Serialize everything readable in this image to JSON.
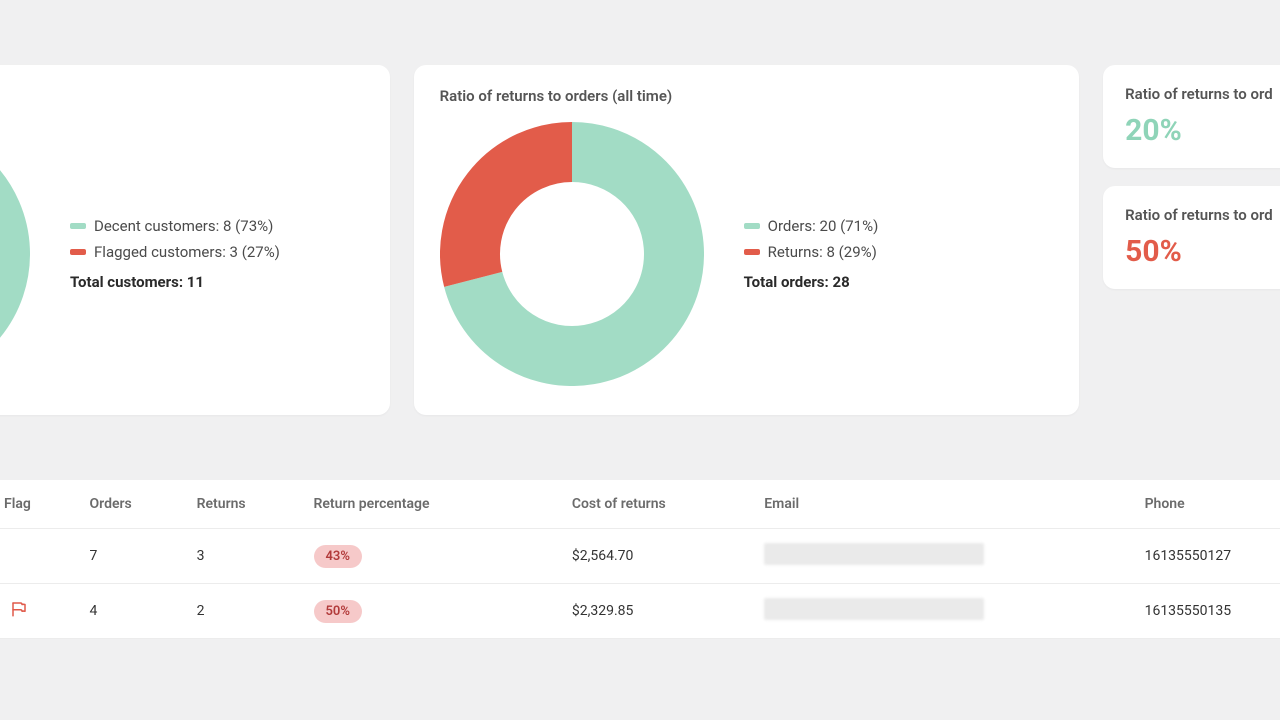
{
  "colors": {
    "green": "#a2dcc5",
    "red": "#e25c4a",
    "pill_bg": "#f6c9c9",
    "pill_text": "#b23a3a",
    "stat_green": "#8fd4b8",
    "stat_red": "#e25c4a"
  },
  "card_left": {
    "donut": {
      "type": "donut",
      "outer_radius": 132,
      "inner_radius": 72,
      "stroke_width": 60,
      "start_angle_deg": -90,
      "segments": [
        {
          "label": "Decent customers",
          "value": 8,
          "pct": 73,
          "color": "#a2dcc5"
        },
        {
          "label": "Flagged customers",
          "value": 3,
          "pct": 27,
          "color": "#e25c4a"
        }
      ]
    },
    "legend": [
      {
        "label": "Decent customers: 8 (73%)",
        "color": "#a2dcc5"
      },
      {
        "label": "Flagged customers: 3 (27%)",
        "color": "#e25c4a"
      }
    ],
    "total_label": "Total customers: 11"
  },
  "card_mid": {
    "title": "Ratio of returns to orders (all time)",
    "donut": {
      "type": "donut",
      "outer_radius": 132,
      "inner_radius": 72,
      "stroke_width": 60,
      "start_angle_deg": -90,
      "segments": [
        {
          "label": "Orders",
          "value": 20,
          "pct": 71,
          "color": "#a2dcc5"
        },
        {
          "label": "Returns",
          "value": 8,
          "pct": 29,
          "color": "#e25c4a"
        }
      ]
    },
    "legend": [
      {
        "label": "Orders: 20 (71%)",
        "color": "#a2dcc5"
      },
      {
        "label": "Returns: 8 (29%)",
        "color": "#e25c4a"
      }
    ],
    "total_label": "Total orders: 28"
  },
  "stat_a": {
    "title": "Ratio of returns to ord",
    "value": "20%",
    "color": "#8fd4b8"
  },
  "stat_b": {
    "title": "Ratio of returns to ord",
    "value": "50%",
    "color": "#e25c4a"
  },
  "table": {
    "columns": [
      "Flag",
      "Orders",
      "Returns",
      "Return percentage",
      "Cost of returns",
      "Email",
      "Phone"
    ],
    "rows": [
      {
        "flag": false,
        "orders": "7",
        "returns": "3",
        "pct": "43%",
        "cost": "$2,564.70",
        "email": "",
        "phone": "16135550127"
      },
      {
        "flag": true,
        "orders": "4",
        "returns": "2",
        "pct": "50%",
        "cost": "$2,329.85",
        "email": "",
        "phone": "16135550135"
      }
    ]
  }
}
